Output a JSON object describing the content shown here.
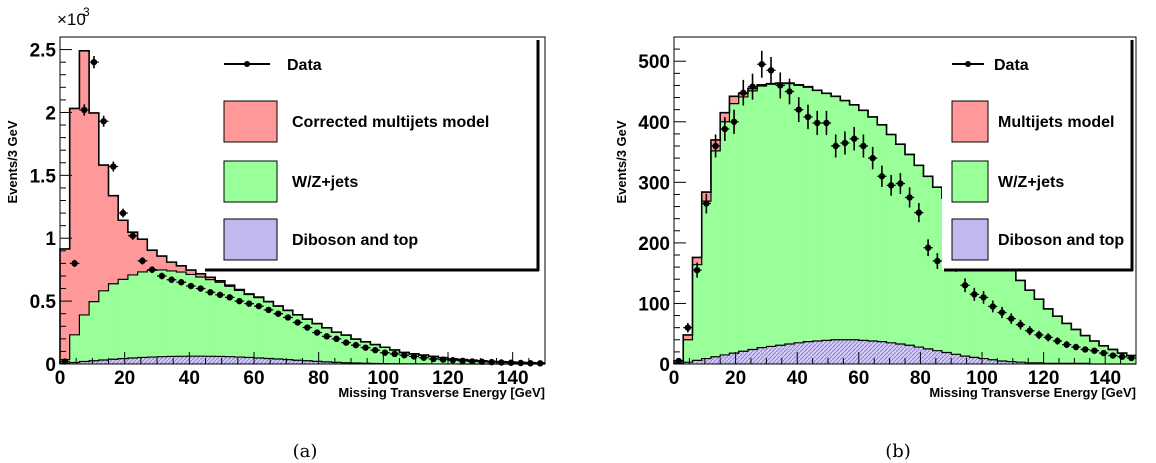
{
  "caption_a": "(a)",
  "caption_b": "(b)",
  "chart_data": [
    {
      "type": "area",
      "panel": "(a)",
      "xlabel": "Missing Transverse Energy [GeV]",
      "ylabel": "Events/3 GeV",
      "y_exponent_label": "×10",
      "y_exponent_power": "3",
      "xlim": [
        0,
        150
      ],
      "ylim": [
        0,
        2.6
      ],
      "xticks": [
        0,
        20,
        40,
        60,
        80,
        100,
        120,
        140
      ],
      "yticks": [
        0,
        0.5,
        1,
        1.5,
        2,
        2.5
      ],
      "ytick_labels": [
        "0",
        "0.5",
        "1",
        "1.5",
        "2",
        "2.5"
      ],
      "bin_width": 3,
      "legend": {
        "data": "Data",
        "multijets": "Corrected multijets model",
        "wz": "W/Z+jets",
        "diboson": "Diboson and top"
      },
      "colors": {
        "multijets": "#ff9999",
        "wz": "#99ff99",
        "diboson": "#c2b8f0",
        "edge": "#000000"
      },
      "diboson": [
        0.005,
        0.012,
        0.02,
        0.026,
        0.032,
        0.038,
        0.043,
        0.048,
        0.052,
        0.055,
        0.058,
        0.06,
        0.061,
        0.062,
        0.062,
        0.061,
        0.06,
        0.058,
        0.055,
        0.052,
        0.048,
        0.044,
        0.04,
        0.035,
        0.03,
        0.026,
        0.021,
        0.017,
        0.013,
        0.01,
        0.008,
        0.006,
        0.004,
        0.003,
        0.002,
        0.0015,
        0.001,
        0.0008,
        0.0006,
        0.0004,
        0.0003,
        0.0002,
        0.0002,
        0.0001,
        0.0001,
        0.0001,
        0.0001,
        0.0001,
        0.0001,
        0.0001
      ],
      "wz": [
        0.03,
        0.22,
        0.37,
        0.47,
        0.55,
        0.6,
        0.63,
        0.66,
        0.68,
        0.69,
        0.69,
        0.68,
        0.67,
        0.65,
        0.63,
        0.61,
        0.59,
        0.56,
        0.53,
        0.5,
        0.48,
        0.45,
        0.42,
        0.39,
        0.36,
        0.33,
        0.3,
        0.27,
        0.24,
        0.22,
        0.19,
        0.17,
        0.15,
        0.13,
        0.11,
        0.09,
        0.08,
        0.07,
        0.06,
        0.05,
        0.04,
        0.035,
        0.03,
        0.025,
        0.02,
        0.018,
        0.015,
        0.012,
        0.01,
        0.008
      ],
      "multijets": [
        0.88,
        1.8,
        2.1,
        1.5,
        1.0,
        0.7,
        0.47,
        0.34,
        0.26,
        0.16,
        0.11,
        0.07,
        0.05,
        0.035,
        0.025,
        0.018,
        0.012,
        0.009,
        0.007,
        0.005,
        0.004,
        0.003,
        0.002,
        0.0015,
        0.001,
        0.001,
        0.0008,
        0.0006,
        0.0005,
        0.0004,
        0.0003,
        0.0002,
        0.0002,
        0.0001,
        0.0001,
        0.0001,
        0.0001,
        0.0001,
        0.0001,
        0.0001,
        0.0001,
        0.0001,
        0.0001,
        0.0001,
        0.0001,
        0.0001,
        0.0001,
        0.0001,
        0.0001,
        0.0001
      ],
      "data": [
        0.02,
        0.8,
        2.02,
        2.4,
        1.93,
        1.57,
        1.2,
        1.02,
        0.82,
        0.75,
        0.7,
        0.67,
        0.65,
        0.62,
        0.6,
        0.57,
        0.55,
        0.53,
        0.5,
        0.48,
        0.46,
        0.43,
        0.4,
        0.37,
        0.33,
        0.29,
        0.25,
        0.22,
        0.2,
        0.17,
        0.15,
        0.13,
        0.11,
        0.09,
        0.08,
        0.07,
        0.06,
        0.05,
        0.04,
        0.035,
        0.03,
        0.025,
        0.02,
        0.018,
        0.015,
        0.012,
        0.01,
        0.008,
        0.006,
        0.005
      ]
    },
    {
      "type": "area",
      "panel": "(b)",
      "xlabel": "Missing Transverse Energy [GeV]",
      "ylabel": "Events/3 GeV",
      "xlim": [
        0,
        150
      ],
      "ylim": [
        0,
        540
      ],
      "xticks": [
        0,
        20,
        40,
        60,
        80,
        100,
        120,
        140
      ],
      "yticks": [
        0,
        100,
        200,
        300,
        400,
        500
      ],
      "ytick_labels": [
        "0",
        "100",
        "200",
        "300",
        "400",
        "500"
      ],
      "bin_width": 3,
      "legend": {
        "data": "Data",
        "multijets": "Multijets model",
        "wz": "W/Z+jets",
        "diboson": "Diboson and top"
      },
      "colors": {
        "multijets": "#ff9999",
        "wz": "#99ff99",
        "diboson": "#c2b8f0",
        "edge": "#000000"
      },
      "diboson": [
        1,
        3,
        6,
        9,
        12,
        15,
        18,
        21,
        24,
        27,
        29,
        31,
        33,
        35,
        37,
        38,
        39,
        40,
        40,
        40,
        39,
        38,
        37,
        35,
        33,
        31,
        28,
        25,
        22,
        19,
        16,
        13,
        11,
        9,
        7,
        5,
        4,
        3,
        2,
        2,
        1,
        1,
        1,
        1,
        1,
        0,
        0,
        0,
        0,
        0
      ],
      "wz": [
        0,
        37,
        158,
        260,
        340,
        385,
        412,
        420,
        427,
        432,
        433,
        432,
        430,
        425,
        420,
        414,
        408,
        402,
        395,
        388,
        380,
        370,
        358,
        344,
        330,
        315,
        300,
        285,
        270,
        255,
        240,
        225,
        210,
        195,
        180,
        165,
        150,
        135,
        120,
        105,
        90,
        78,
        66,
        56,
        46,
        38,
        30,
        24,
        18,
        14
      ],
      "multijets": [
        4,
        8,
        12,
        15,
        18,
        15,
        12,
        6,
        4,
        2,
        1,
        1,
        1,
        1,
        1,
        0,
        0,
        0,
        0,
        0,
        0,
        0,
        0,
        0,
        0,
        0,
        0,
        0,
        0,
        0,
        0,
        0,
        0,
        0,
        0,
        0,
        0,
        0,
        0,
        0,
        0,
        0,
        0,
        0,
        0,
        0,
        0,
        0,
        0,
        0
      ],
      "data": [
        5,
        60,
        155,
        265,
        360,
        388,
        400,
        448,
        458,
        495,
        485,
        460,
        450,
        420,
        408,
        398,
        398,
        360,
        365,
        372,
        360,
        340,
        310,
        295,
        298,
        275,
        250,
        192,
        170,
        180,
        165,
        130,
        115,
        110,
        95,
        85,
        75,
        65,
        55,
        48,
        44,
        38,
        32,
        28,
        24,
        22,
        18,
        14,
        12,
        10
      ]
    }
  ]
}
